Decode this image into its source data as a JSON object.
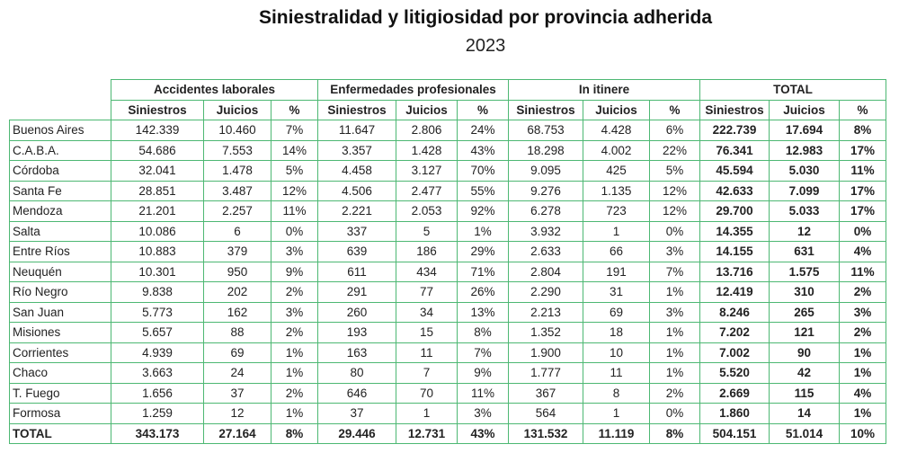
{
  "title": "Siniestralidad y litigiosidad por provincia adherida",
  "year": "2023",
  "groups": [
    "Accidentes laborales",
    "Enfermedades profesionales",
    "In itinere",
    "TOTAL"
  ],
  "subheaders": [
    "Siniestros",
    "Juicios",
    "%"
  ],
  "rows": [
    [
      "Buenos Aires",
      "142.339",
      "10.460",
      "7%",
      "11.647",
      "2.806",
      "24%",
      "68.753",
      "4.428",
      "6%",
      "222.739",
      "17.694",
      "8%"
    ],
    [
      "C.A.B.A.",
      "54.686",
      "7.553",
      "14%",
      "3.357",
      "1.428",
      "43%",
      "18.298",
      "4.002",
      "22%",
      "76.341",
      "12.983",
      "17%"
    ],
    [
      "Córdoba",
      "32.041",
      "1.478",
      "5%",
      "4.458",
      "3.127",
      "70%",
      "9.095",
      "425",
      "5%",
      "45.594",
      "5.030",
      "11%"
    ],
    [
      "Santa Fe",
      "28.851",
      "3.487",
      "12%",
      "4.506",
      "2.477",
      "55%",
      "9.276",
      "1.135",
      "12%",
      "42.633",
      "7.099",
      "17%"
    ],
    [
      "Mendoza",
      "21.201",
      "2.257",
      "11%",
      "2.221",
      "2.053",
      "92%",
      "6.278",
      "723",
      "12%",
      "29.700",
      "5.033",
      "17%"
    ],
    [
      "Salta",
      "10.086",
      "6",
      "0%",
      "337",
      "5",
      "1%",
      "3.932",
      "1",
      "0%",
      "14.355",
      "12",
      "0%"
    ],
    [
      "Entre Ríos",
      "10.883",
      "379",
      "3%",
      "639",
      "186",
      "29%",
      "2.633",
      "66",
      "3%",
      "14.155",
      "631",
      "4%"
    ],
    [
      "Neuquén",
      "10.301",
      "950",
      "9%",
      "611",
      "434",
      "71%",
      "2.804",
      "191",
      "7%",
      "13.716",
      "1.575",
      "11%"
    ],
    [
      "Río Negro",
      "9.838",
      "202",
      "2%",
      "291",
      "77",
      "26%",
      "2.290",
      "31",
      "1%",
      "12.419",
      "310",
      "2%"
    ],
    [
      "San Juan",
      "5.773",
      "162",
      "3%",
      "260",
      "34",
      "13%",
      "2.213",
      "69",
      "3%",
      "8.246",
      "265",
      "3%"
    ],
    [
      "Misiones",
      "5.657",
      "88",
      "2%",
      "193",
      "15",
      "8%",
      "1.352",
      "18",
      "1%",
      "7.202",
      "121",
      "2%"
    ],
    [
      "Corrientes",
      "4.939",
      "69",
      "1%",
      "163",
      "11",
      "7%",
      "1.900",
      "10",
      "1%",
      "7.002",
      "90",
      "1%"
    ],
    [
      "Chaco",
      "3.663",
      "24",
      "1%",
      "80",
      "7",
      "9%",
      "1.777",
      "11",
      "1%",
      "5.520",
      "42",
      "1%"
    ],
    [
      "T. Fuego",
      "1.656",
      "37",
      "2%",
      "646",
      "70",
      "11%",
      "367",
      "8",
      "2%",
      "2.669",
      "115",
      "4%"
    ],
    [
      "Formosa",
      "1.259",
      "12",
      "1%",
      "37",
      "1",
      "3%",
      "564",
      "1",
      "0%",
      "1.860",
      "14",
      "1%"
    ]
  ],
  "total": [
    "TOTAL",
    "343.173",
    "27.164",
    "8%",
    "29.446",
    "12.731",
    "43%",
    "131.532",
    "11.119",
    "8%",
    "504.151",
    "51.014",
    "10%"
  ],
  "colors": {
    "border": "#4db873"
  }
}
